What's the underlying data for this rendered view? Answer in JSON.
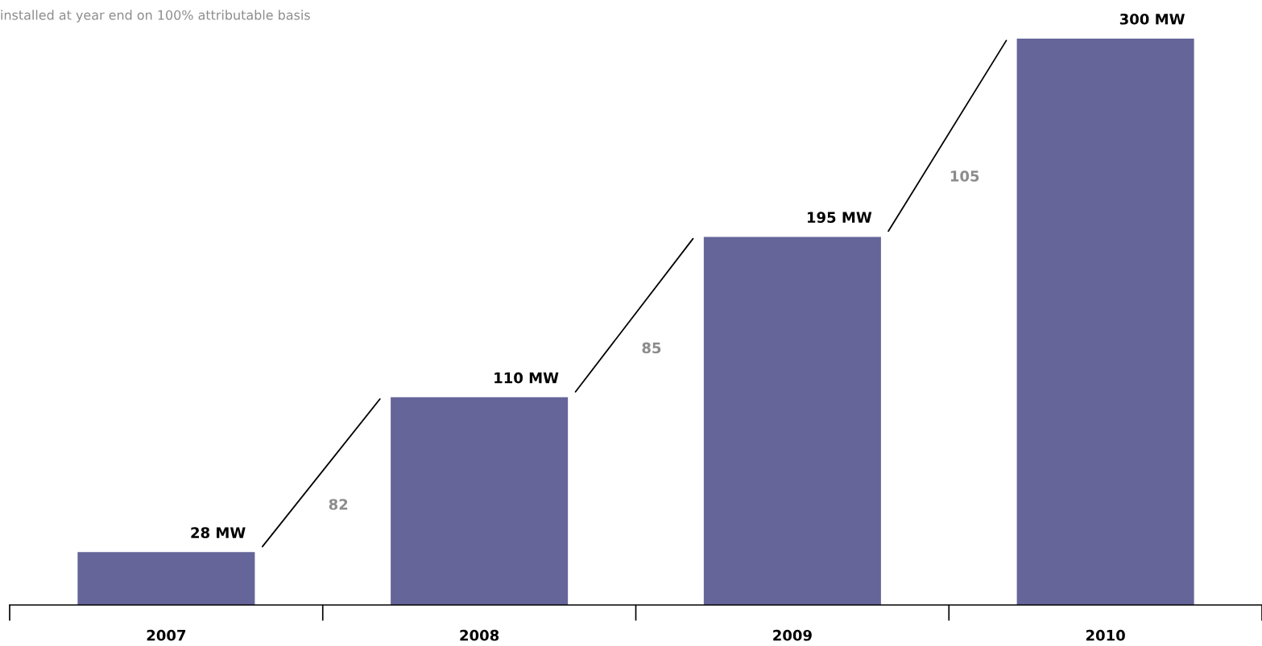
{
  "chart_data": {
    "type": "bar",
    "subtitle": "installed at year end on 100% attributable basis",
    "categories": [
      "2007",
      "2008",
      "2009",
      "2010"
    ],
    "values": [
      28,
      110,
      195,
      300
    ],
    "value_labels": [
      "28 MW",
      "110 MW",
      "195 MW",
      "300 MW"
    ],
    "color": "#65659a",
    "ylim": [
      0,
      300
    ],
    "tick_labels": "x",
    "grid": false,
    "legend": false,
    "annotations": [
      "82",
      "85",
      "105"
    ]
  }
}
